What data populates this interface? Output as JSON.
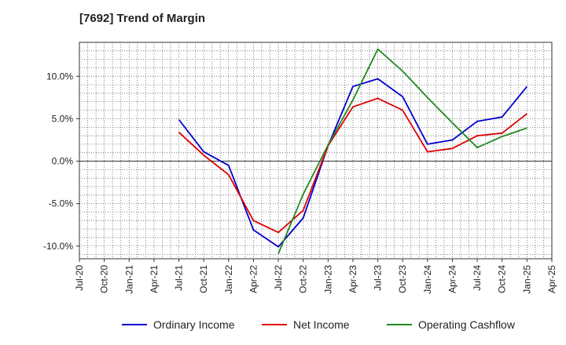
{
  "chart_data": {
    "type": "line",
    "title": "[7692]  Trend of Margin",
    "xlabel": "",
    "ylabel": "",
    "x_ticks": [
      "Jul-20",
      "Oct-20",
      "Jan-21",
      "Apr-21",
      "Jul-21",
      "Oct-21",
      "Jan-22",
      "Apr-22",
      "Jul-22",
      "Oct-22",
      "Jan-23",
      "Apr-23",
      "Jul-23",
      "Oct-23",
      "Jan-24",
      "Apr-24",
      "Jul-24",
      "Oct-24",
      "Jan-25",
      "Apr-25"
    ],
    "y_ticks": [
      10.0,
      5.0,
      0.0,
      -5.0,
      -10.0
    ],
    "y_tick_labels": [
      "10.0%",
      "5.0%",
      "0.0%",
      "-5.0%",
      "-10.0%"
    ],
    "ylim": [
      -11.5,
      14.0
    ],
    "grid": true,
    "legend_position": "bottom",
    "series": [
      {
        "name": "Ordinary Income",
        "color": "#0000cc",
        "points": [
          [
            "Jul-21",
            4.9
          ],
          [
            "Oct-21",
            1.1
          ],
          [
            "Jan-22",
            -0.5
          ],
          [
            "Apr-22",
            -8.1
          ],
          [
            "Jul-22",
            -10.1
          ],
          [
            "Oct-22",
            -6.7
          ],
          [
            "Jan-23",
            1.8
          ],
          [
            "Apr-23",
            8.8
          ],
          [
            "Jul-23",
            9.7
          ],
          [
            "Oct-23",
            7.6
          ],
          [
            "Jan-24",
            2.0
          ],
          [
            "Apr-24",
            2.5
          ],
          [
            "Jul-24",
            4.7
          ],
          [
            "Oct-24",
            5.2
          ],
          [
            "Jan-25",
            8.8
          ]
        ]
      },
      {
        "name": "Net Income",
        "color": "#dd0000",
        "points": [
          [
            "Jul-21",
            3.4
          ],
          [
            "Oct-21",
            0.7
          ],
          [
            "Jan-22",
            -1.6
          ],
          [
            "Apr-22",
            -7.0
          ],
          [
            "Jul-22",
            -8.4
          ],
          [
            "Oct-22",
            -5.8
          ],
          [
            "Jan-23",
            1.8
          ],
          [
            "Apr-23",
            6.4
          ],
          [
            "Jul-23",
            7.4
          ],
          [
            "Oct-23",
            6.0
          ],
          [
            "Jan-24",
            1.1
          ],
          [
            "Apr-24",
            1.5
          ],
          [
            "Jul-24",
            3.0
          ],
          [
            "Oct-24",
            3.3
          ],
          [
            "Jan-25",
            5.6
          ]
        ]
      },
      {
        "name": "Operating Cashflow",
        "color": "#228822",
        "points": [
          [
            "Jul-22",
            -10.9
          ],
          [
            "Oct-22",
            -3.9
          ],
          [
            "Jan-23",
            1.9
          ],
          [
            "Apr-23",
            7.2
          ],
          [
            "Jul-23",
            13.2
          ],
          [
            "Oct-23",
            10.6
          ],
          [
            "Jan-24",
            7.5
          ],
          [
            "Apr-24",
            4.5
          ],
          [
            "Jul-24",
            1.6
          ],
          [
            "Oct-24",
            2.9
          ],
          [
            "Jan-25",
            3.9
          ]
        ]
      }
    ]
  }
}
